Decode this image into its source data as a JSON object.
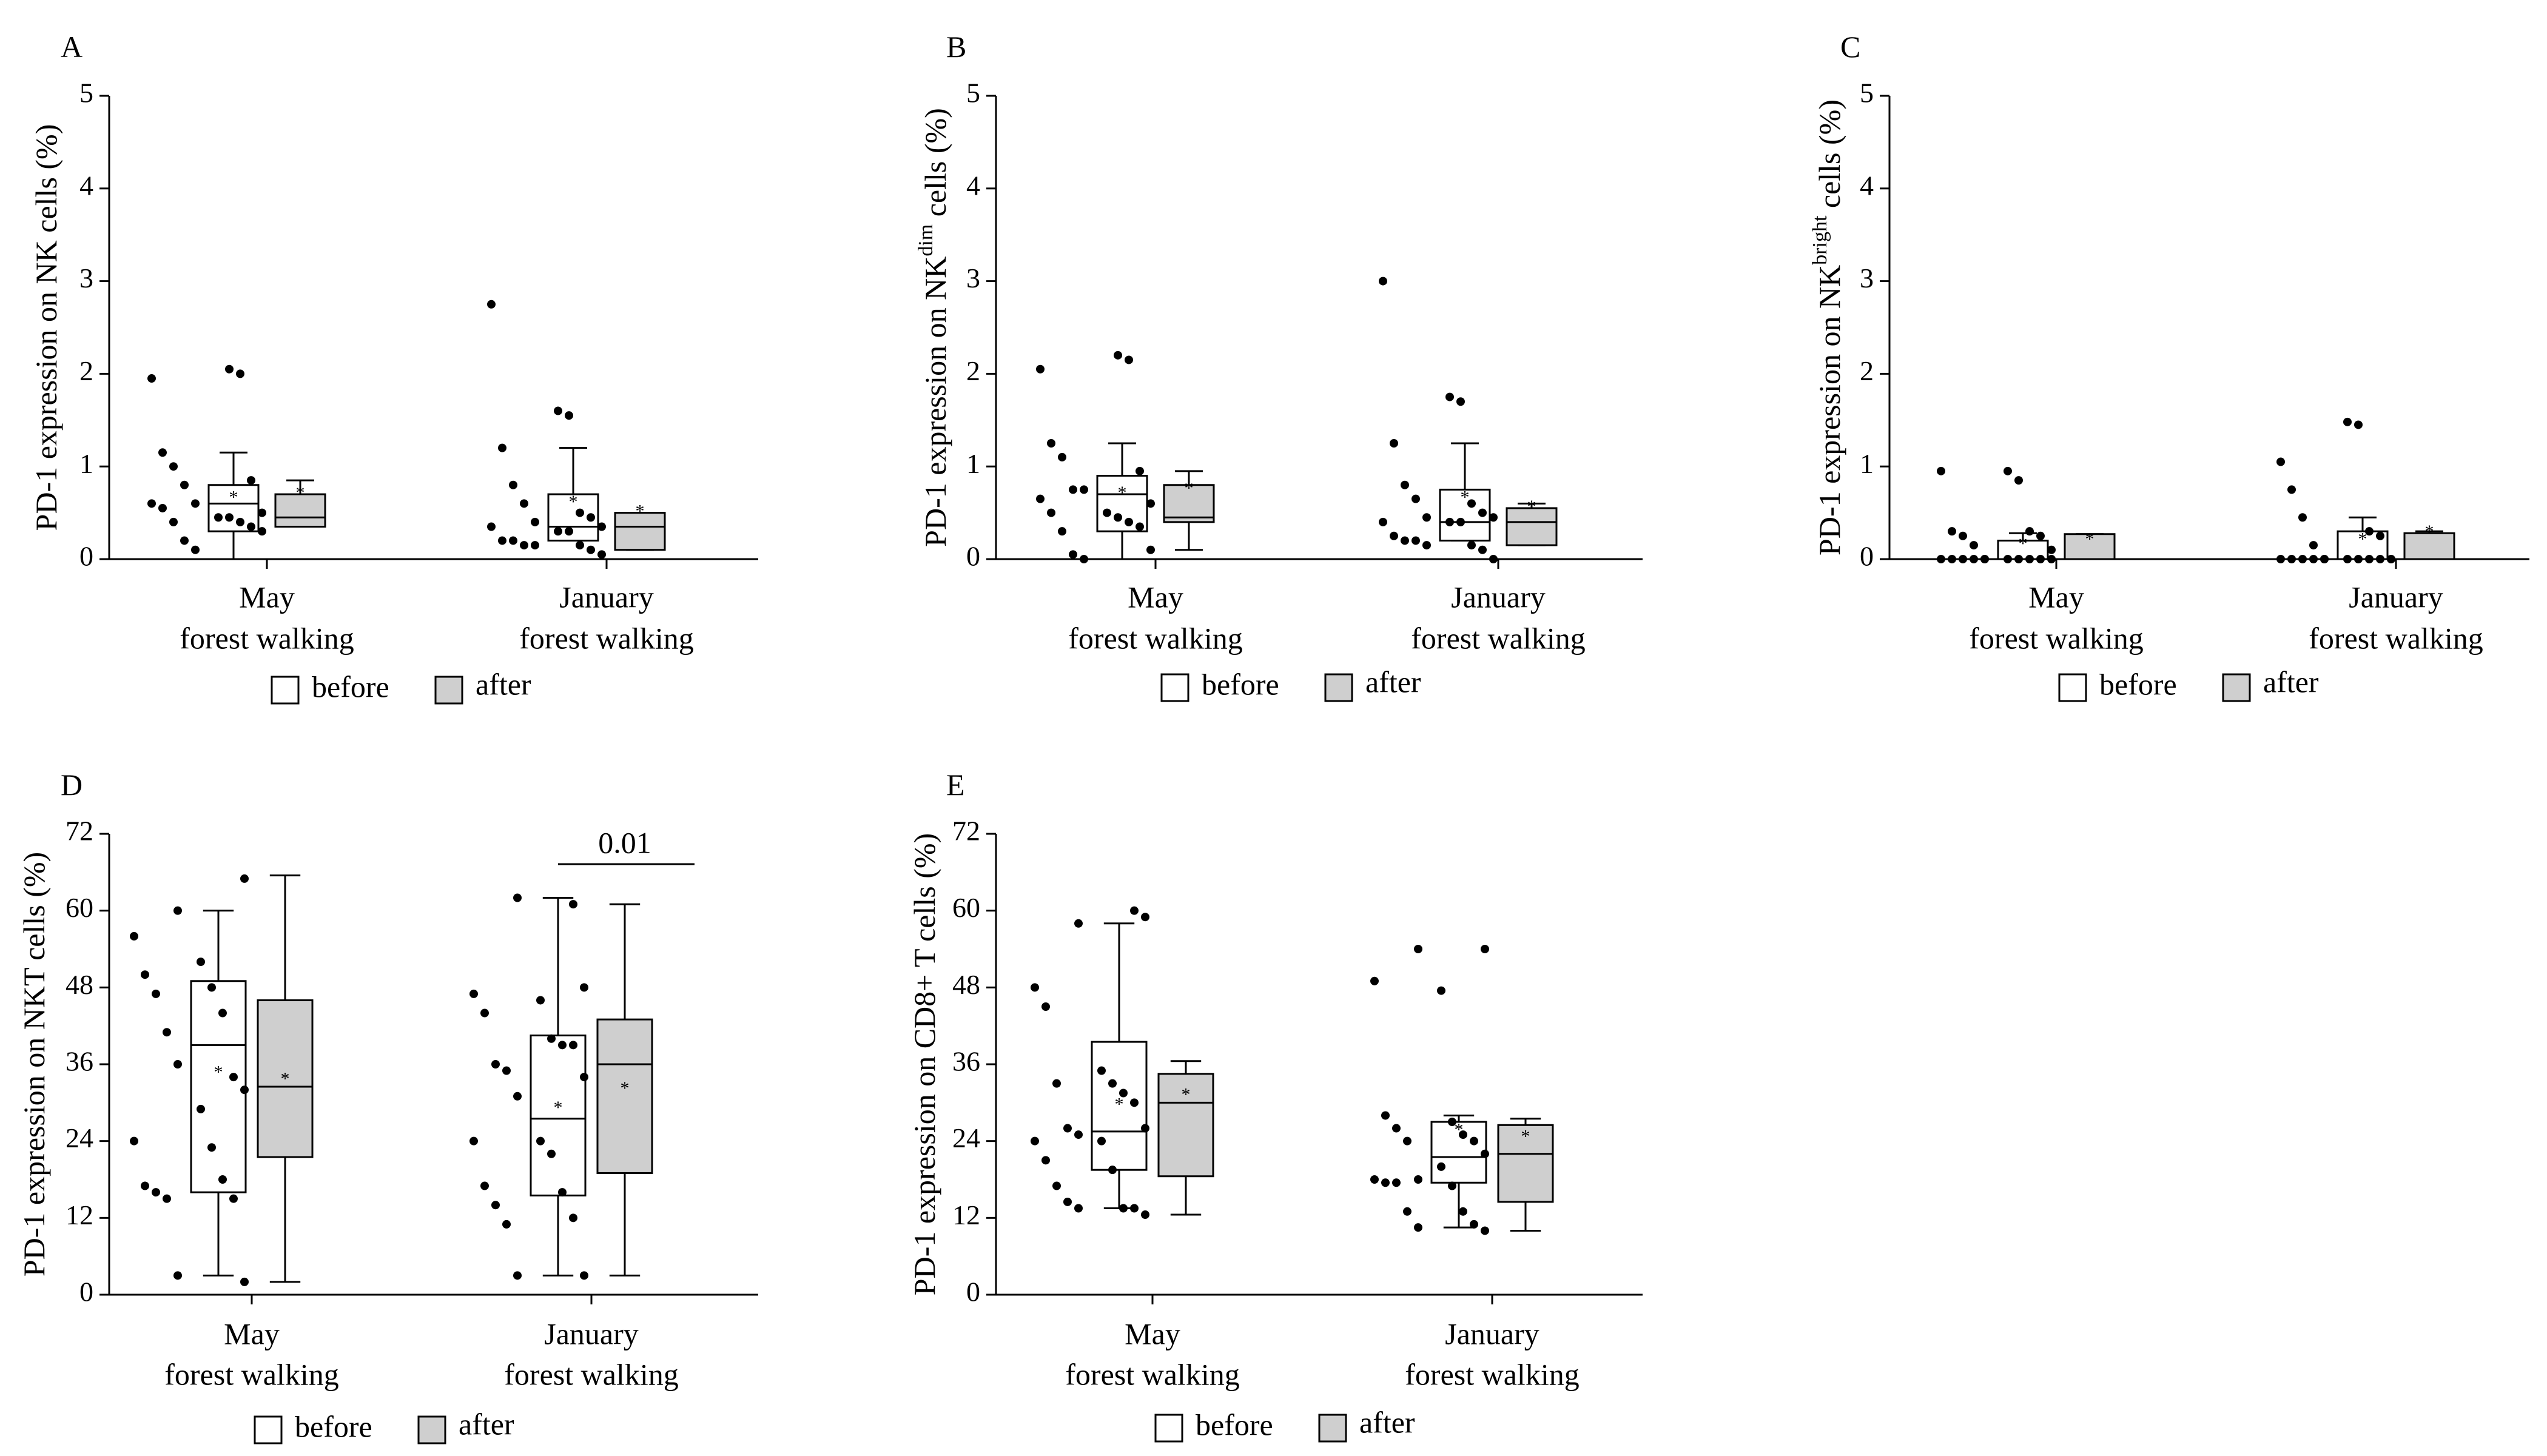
{
  "legend": {
    "before": "before",
    "after": "after"
  },
  "colors": {
    "before_fill": "#ffffff",
    "after_fill": "#cfcfcf",
    "ink": "#000000"
  },
  "chart_data": [
    {
      "panel": "A",
      "type": "box",
      "ylabel": {
        "pre": "PD-1 expression on NK",
        "sup": "",
        "post": " cells (%)"
      },
      "ylim": [
        0,
        5
      ],
      "yticks": [
        "0",
        "1",
        "2",
        "3",
        "4",
        "5"
      ],
      "categories": [
        [
          "May",
          "forest walking"
        ],
        [
          "January",
          "forest walking"
        ]
      ],
      "groups": [
        {
          "cat": 0,
          "series": "before",
          "box": {
            "min": 0.0,
            "q1": 0.3,
            "median": 0.6,
            "q3": 0.8,
            "max": 1.15,
            "mean": 0.65
          },
          "points": [
            0.1,
            0.2,
            0.4,
            0.55,
            0.6,
            0.6,
            0.8,
            1.0,
            1.15,
            1.95
          ]
        },
        {
          "cat": 0,
          "series": "after",
          "box": {
            "min": 0.35,
            "q1": 0.35,
            "median": 0.45,
            "q3": 0.7,
            "max": 0.85,
            "mean": 0.7
          },
          "points": [
            0.3,
            0.35,
            0.4,
            0.45,
            0.45,
            0.5,
            0.85,
            2.0,
            2.05
          ]
        },
        {
          "cat": 1,
          "series": "before",
          "box": {
            "min": 0.2,
            "q1": 0.2,
            "median": 0.35,
            "q3": 0.7,
            "max": 1.2,
            "mean": 0.6
          },
          "points": [
            0.15,
            0.15,
            0.2,
            0.2,
            0.35,
            0.4,
            0.6,
            0.8,
            1.2,
            2.75
          ]
        },
        {
          "cat": 1,
          "series": "after",
          "box": {
            "min": 0.1,
            "q1": 0.1,
            "median": 0.35,
            "q3": 0.5,
            "max": 0.5,
            "mean": 0.5
          },
          "points": [
            0.05,
            0.1,
            0.15,
            0.3,
            0.3,
            0.35,
            0.45,
            0.5,
            1.55,
            1.6
          ]
        }
      ]
    },
    {
      "panel": "B",
      "type": "box",
      "ylabel": {
        "pre": "PD-1 expression on NK",
        "sup": "dim",
        "post": " cells (%)"
      },
      "ylim": [
        0,
        5
      ],
      "yticks": [
        "0",
        "1",
        "2",
        "3",
        "4",
        "5"
      ],
      "categories": [
        [
          "May",
          "forest walking"
        ],
        [
          "January",
          "forest walking"
        ]
      ],
      "groups": [
        {
          "cat": 0,
          "series": "before",
          "box": {
            "min": 0.0,
            "q1": 0.3,
            "median": 0.7,
            "q3": 0.9,
            "max": 1.25,
            "mean": 0.7
          },
          "points": [
            0.0,
            0.05,
            0.3,
            0.5,
            0.65,
            0.75,
            0.75,
            1.1,
            1.25,
            2.05
          ]
        },
        {
          "cat": 0,
          "series": "after",
          "box": {
            "min": 0.1,
            "q1": 0.4,
            "median": 0.45,
            "q3": 0.8,
            "max": 0.95,
            "mean": 0.75
          },
          "points": [
            0.1,
            0.35,
            0.4,
            0.45,
            0.5,
            0.6,
            0.95,
            2.15,
            2.2
          ]
        },
        {
          "cat": 1,
          "series": "before",
          "box": {
            "min": 0.2,
            "q1": 0.2,
            "median": 0.4,
            "q3": 0.75,
            "max": 1.25,
            "mean": 0.65
          },
          "points": [
            0.15,
            0.2,
            0.2,
            0.25,
            0.4,
            0.45,
            0.65,
            0.8,
            1.25,
            3.0
          ]
        },
        {
          "cat": 1,
          "series": "after",
          "box": {
            "min": 0.15,
            "q1": 0.15,
            "median": 0.4,
            "q3": 0.55,
            "max": 0.6,
            "mean": 0.55
          },
          "points": [
            0.0,
            0.1,
            0.15,
            0.4,
            0.4,
            0.45,
            0.5,
            0.6,
            1.7,
            1.75
          ]
        }
      ]
    },
    {
      "panel": "C",
      "type": "box",
      "ylabel": {
        "pre": "PD-1 expression on NK",
        "sup": "bright",
        "post": " cells (%)"
      },
      "ylim": [
        0,
        5
      ],
      "yticks": [
        "0",
        "1",
        "2",
        "3",
        "4",
        "5"
      ],
      "categories": [
        [
          "May",
          "forest walking"
        ],
        [
          "January",
          "forest walking"
        ]
      ],
      "groups": [
        {
          "cat": 0,
          "series": "before",
          "box": {
            "min": 0.0,
            "q1": 0.0,
            "median": 0.0,
            "q3": 0.2,
            "max": 0.28,
            "mean": 0.15
          },
          "points": [
            0,
            0,
            0,
            0,
            0,
            0,
            0.15,
            0.25,
            0.3,
            0.95
          ]
        },
        {
          "cat": 0,
          "series": "after",
          "box": {
            "min": 0.0,
            "q1": 0.0,
            "median": 0.0,
            "q3": 0.27,
            "max": 0.27,
            "mean": 0.2
          },
          "points": [
            0,
            0,
            0,
            0,
            0,
            0.1,
            0.25,
            0.3,
            0.85,
            0.95
          ]
        },
        {
          "cat": 1,
          "series": "before",
          "box": {
            "min": 0.0,
            "q1": 0.0,
            "median": 0.0,
            "q3": 0.3,
            "max": 0.45,
            "mean": 0.2
          },
          "points": [
            0,
            0,
            0,
            0,
            0,
            0,
            0.15,
            0.45,
            0.75,
            1.05
          ]
        },
        {
          "cat": 1,
          "series": "after",
          "box": {
            "min": 0.0,
            "q1": 0.0,
            "median": 0.0,
            "q3": 0.28,
            "max": 0.3,
            "mean": 0.28
          },
          "points": [
            0,
            0,
            0,
            0,
            0,
            0,
            0.25,
            0.3,
            1.45,
            1.48
          ]
        }
      ]
    },
    {
      "panel": "D",
      "type": "box",
      "ylabel": {
        "pre": "PD-1 expression on NKT cells (%)",
        "sup": "",
        "post": ""
      },
      "ylim": [
        0,
        72
      ],
      "yticks": [
        "0",
        "12",
        "24",
        "36",
        "48",
        "60",
        "72"
      ],
      "categories": [
        [
          "May",
          "forest walking"
        ],
        [
          "January",
          "forest walking"
        ]
      ],
      "annotation": {
        "text": "0.01",
        "cat": 1
      },
      "groups": [
        {
          "cat": 0,
          "series": "before",
          "box": {
            "min": 3,
            "q1": 16,
            "median": 39,
            "q3": 49,
            "max": 60,
            "mean": 34.5
          },
          "points": [
            3,
            15,
            16,
            17,
            24,
            36,
            41,
            47,
            50,
            56,
            60
          ]
        },
        {
          "cat": 0,
          "series": "after",
          "box": {
            "min": 2,
            "q1": 21.5,
            "median": 32.5,
            "q3": 46,
            "max": 65.5,
            "mean": 33.5
          },
          "points": [
            2,
            15,
            18,
            23,
            29,
            32,
            34,
            44,
            48,
            52,
            65
          ]
        },
        {
          "cat": 1,
          "series": "before",
          "box": {
            "min": 3,
            "q1": 15.5,
            "median": 27.5,
            "q3": 40.5,
            "max": 62,
            "mean": 29
          },
          "points": [
            3,
            11,
            14,
            17,
            24,
            31,
            35,
            36,
            44,
            47,
            62
          ]
        },
        {
          "cat": 1,
          "series": "after",
          "box": {
            "min": 3,
            "q1": 19,
            "median": 36,
            "q3": 43,
            "max": 61,
            "mean": 32
          },
          "points": [
            3,
            12,
            16,
            22,
            24,
            34,
            39,
            39,
            40,
            46,
            48,
            61
          ]
        }
      ]
    },
    {
      "panel": "E",
      "type": "box",
      "ylabel": {
        "pre": "PD-1 expression on CD8+ T cells (%)",
        "sup": "",
        "post": ""
      },
      "ylim": [
        0,
        72
      ],
      "yticks": [
        "0",
        "12",
        "24",
        "36",
        "48",
        "60",
        "72"
      ],
      "categories": [
        [
          "May",
          "forest walking"
        ],
        [
          "January",
          "forest walking"
        ]
      ],
      "groups": [
        {
          "cat": 0,
          "series": "before",
          "box": {
            "min": 13.5,
            "q1": 19.5,
            "median": 25.5,
            "q3": 39.5,
            "max": 58,
            "mean": 29.5
          },
          "points": [
            13.5,
            14.5,
            17,
            21,
            24,
            25,
            26,
            33,
            45,
            48,
            58
          ]
        },
        {
          "cat": 0,
          "series": "after",
          "box": {
            "min": 12.5,
            "q1": 18.5,
            "median": 30,
            "q3": 34.5,
            "max": 36.5,
            "mean": 31
          },
          "points": [
            12.5,
            13.5,
            13.5,
            19.5,
            24,
            26,
            30,
            31.5,
            33,
            35,
            59,
            60
          ]
        },
        {
          "cat": 1,
          "series": "before",
          "box": {
            "min": 10.5,
            "q1": 17.5,
            "median": 21.5,
            "q3": 27,
            "max": 28,
            "mean": 25.5
          },
          "points": [
            10.5,
            13,
            17.5,
            17.5,
            18,
            18,
            24,
            26,
            28,
            49,
            54
          ]
        },
        {
          "cat": 1,
          "series": "after",
          "box": {
            "min": 10,
            "q1": 14.5,
            "median": 22,
            "q3": 26.5,
            "max": 27.5,
            "mean": 24.5
          },
          "points": [
            10,
            11,
            13,
            17,
            20,
            22,
            24,
            25,
            27,
            47.5,
            54
          ]
        }
      ]
    }
  ]
}
